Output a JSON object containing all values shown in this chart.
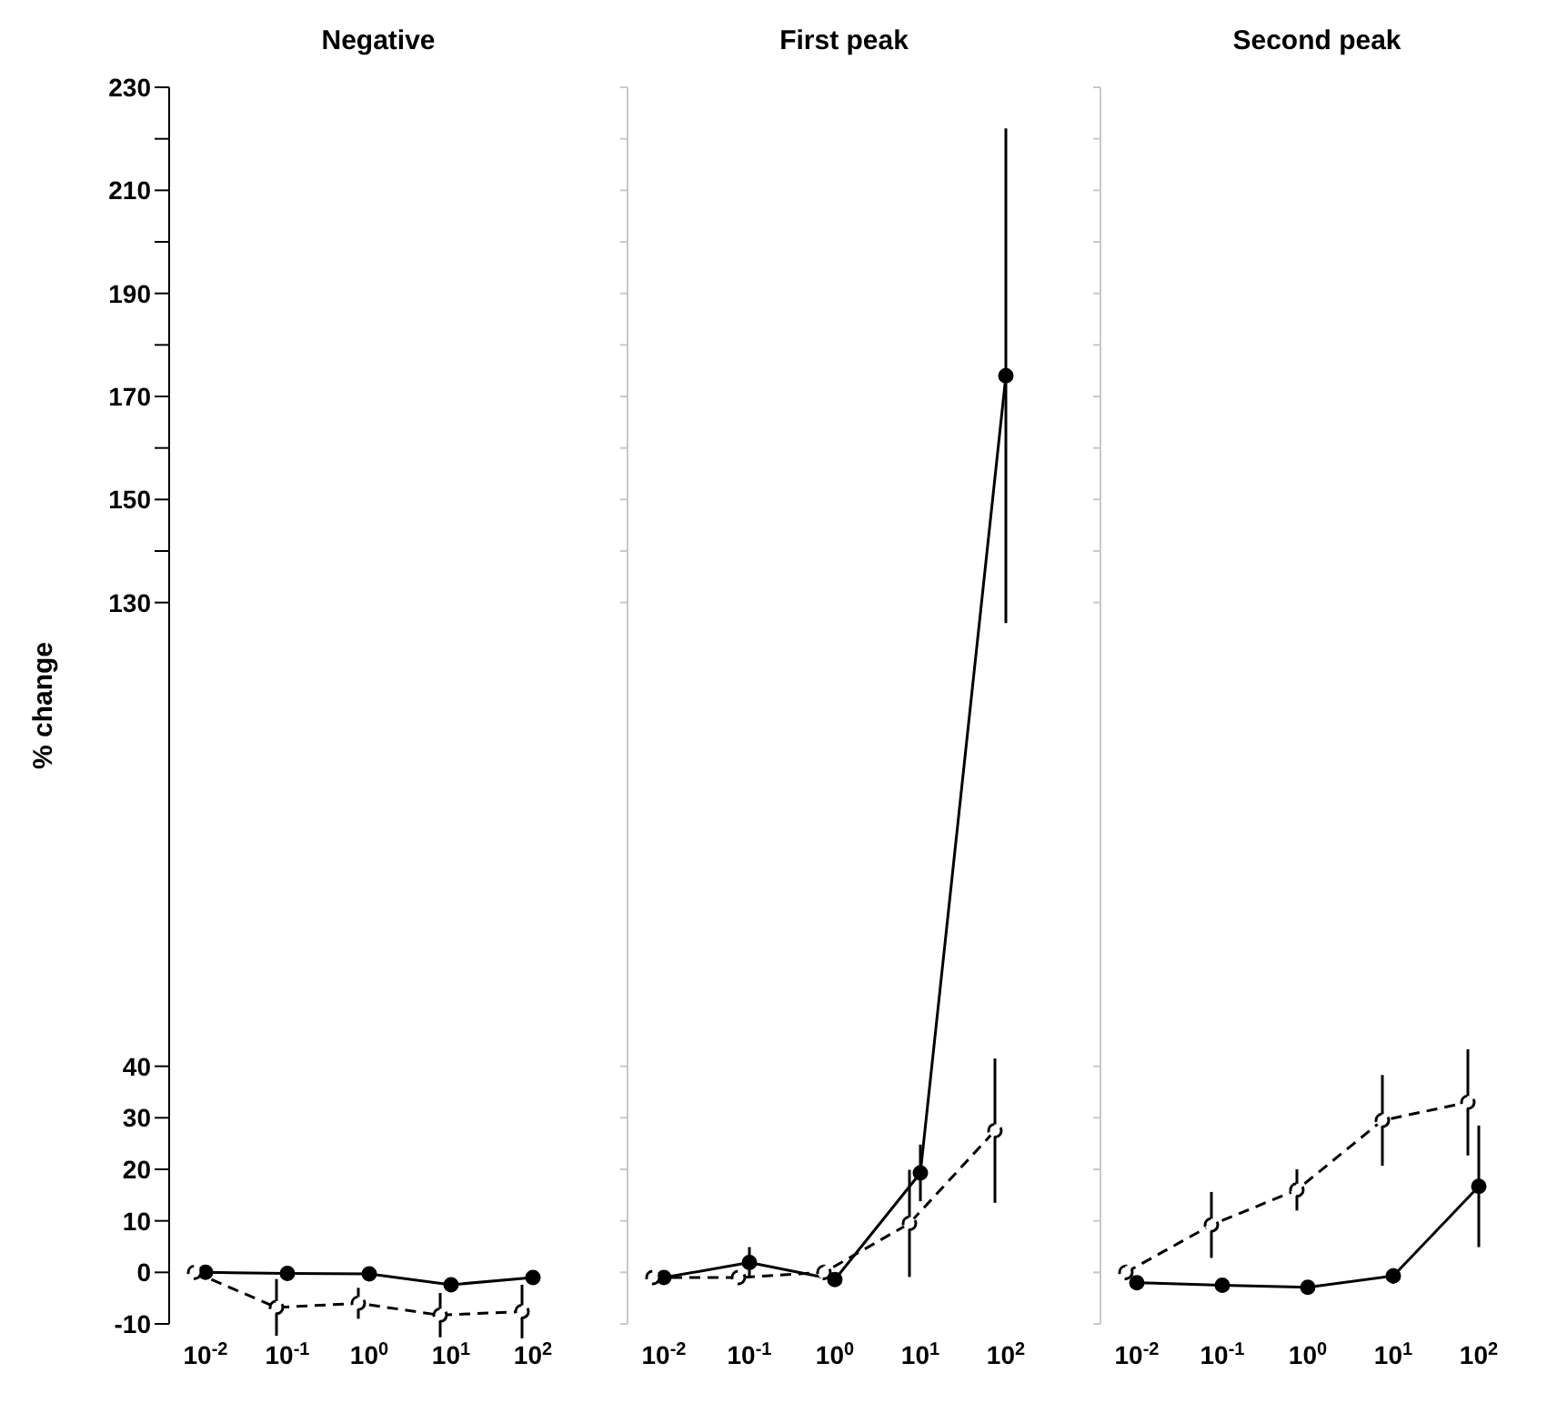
{
  "chart_data": [
    {
      "type": "line",
      "title": "Negative",
      "ylabel": "% change",
      "categories": [
        "10$^{-2}$",
        "10$^{-1}$",
        "10$^{0}$",
        "10$^{1}$",
        "10$^{2}$"
      ],
      "ylim": [
        -10,
        230
      ],
      "yticks": [
        -10,
        0,
        10,
        20,
        30,
        40,
        130,
        {
          "value": 140,
          "label": null
        },
        150,
        {
          "value": 160,
          "label": null
        },
        170,
        {
          "value": 180,
          "label": null
        },
        190,
        {
          "value": 200,
          "label": null
        },
        210,
        {
          "value": 220,
          "label": null
        },
        230
      ],
      "series": [
        {
          "color": "#000000",
          "marker": "circle",
          "line_style": "solid",
          "values": [
            0,
            -0.2,
            -0.3,
            -2.4,
            -1
          ]
        },
        {
          "color": "#000000",
          "marker": "circle",
          "line_style": "dashed",
          "values": [
            0,
            -6.8,
            -6,
            -8.3,
            -7.6
          ],
          "errors": [
            null,
            5.5,
            3,
            4.3,
            5.2
          ]
        }
      ]
    },
    {
      "type": "line",
      "title": "First peak",
      "tick_labels": "x",
      "categories": [
        "10$^{-2}$",
        "10$^{-1}$",
        "10$^{0}$",
        "10$^{1}$",
        "10$^{2}$"
      ],
      "ylim": [
        -10,
        230
      ],
      "yticks": [
        -10,
        0,
        10,
        20,
        30,
        40,
        130,
        {
          "value": 140,
          "label": null
        },
        150,
        {
          "value": 160,
          "label": null
        },
        170,
        {
          "value": 180,
          "label": null
        },
        190,
        {
          "value": 200,
          "label": null
        },
        210,
        {
          "value": 220,
          "label": null
        },
        230
      ],
      "series": [
        {
          "color": "#000000",
          "marker": "circle",
          "line_style": "solid",
          "values": [
            -1,
            1.9,
            -1.4,
            19.3,
            174
          ],
          "errors": [
            null,
            3,
            null,
            5.5,
            48
          ]
        },
        {
          "color": "#000000",
          "marker": "circle",
          "line_style": "dashed",
          "values": [
            -1,
            -1,
            0,
            9.5,
            27.5
          ],
          "errors": [
            null,
            null,
            1.5,
            10.4,
            14
          ]
        }
      ]
    },
    {
      "type": "line",
      "title": "Second peak",
      "tick_labels": "x",
      "categories": [
        "10$^{-2}$",
        "10$^{-1}$",
        "10$^{0}$",
        "10$^{1}$",
        "10$^{2}$"
      ],
      "ylim": [
        -10,
        230
      ],
      "yticks": [
        -10,
        0,
        10,
        20,
        30,
        40,
        130,
        {
          "value": 140,
          "label": null
        },
        150,
        {
          "value": 160,
          "label": null
        },
        170,
        {
          "value": 180,
          "label": null
        },
        190,
        {
          "value": 200,
          "label": null
        },
        210,
        {
          "value": 220,
          "label": null
        },
        230
      ],
      "series": [
        {
          "color": "#000000",
          "marker": "circle",
          "line_style": "solid",
          "values": [
            -2,
            -2.5,
            -2.9,
            -0.7,
            16.7
          ],
          "errors": [
            null,
            null,
            null,
            1.5,
            11.8
          ]
        },
        {
          "color": "#000000",
          "marker": "circle",
          "line_style": "dashed",
          "values": [
            0,
            9.2,
            16,
            29.5,
            33
          ],
          "errors": [
            1.5,
            6.4,
            4,
            8.8,
            10.3
          ]
        }
      ]
    }
  ]
}
